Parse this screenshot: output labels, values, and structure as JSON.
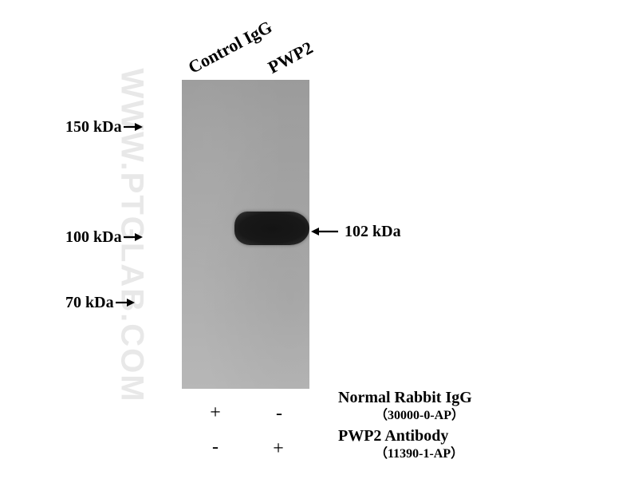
{
  "watermark": {
    "text": "WWW.PTGLAB.COM"
  },
  "lanes": {
    "control_label": "Control IgG",
    "pwp2_label": "PWP2"
  },
  "markers": [
    {
      "label": "150 kDa"
    },
    {
      "label": "100 kDa"
    },
    {
      "label": "70 kDa"
    }
  ],
  "band": {
    "label": "102 kDa"
  },
  "legend": {
    "row1": {
      "title": "Normal Rabbit IgG",
      "code": "（30000-0-AP）",
      "lane1_sign": "+",
      "lane2_sign": "-"
    },
    "row2": {
      "title": "PWP2 Antibody",
      "code": "（11390-1-AP）",
      "lane1_sign": "-",
      "lane2_sign": "+"
    }
  },
  "colors": {
    "background": "#ffffff",
    "membrane": "#a6a6a6",
    "band": "#141414",
    "text": "#000000",
    "watermark": "#e6e6e6"
  }
}
